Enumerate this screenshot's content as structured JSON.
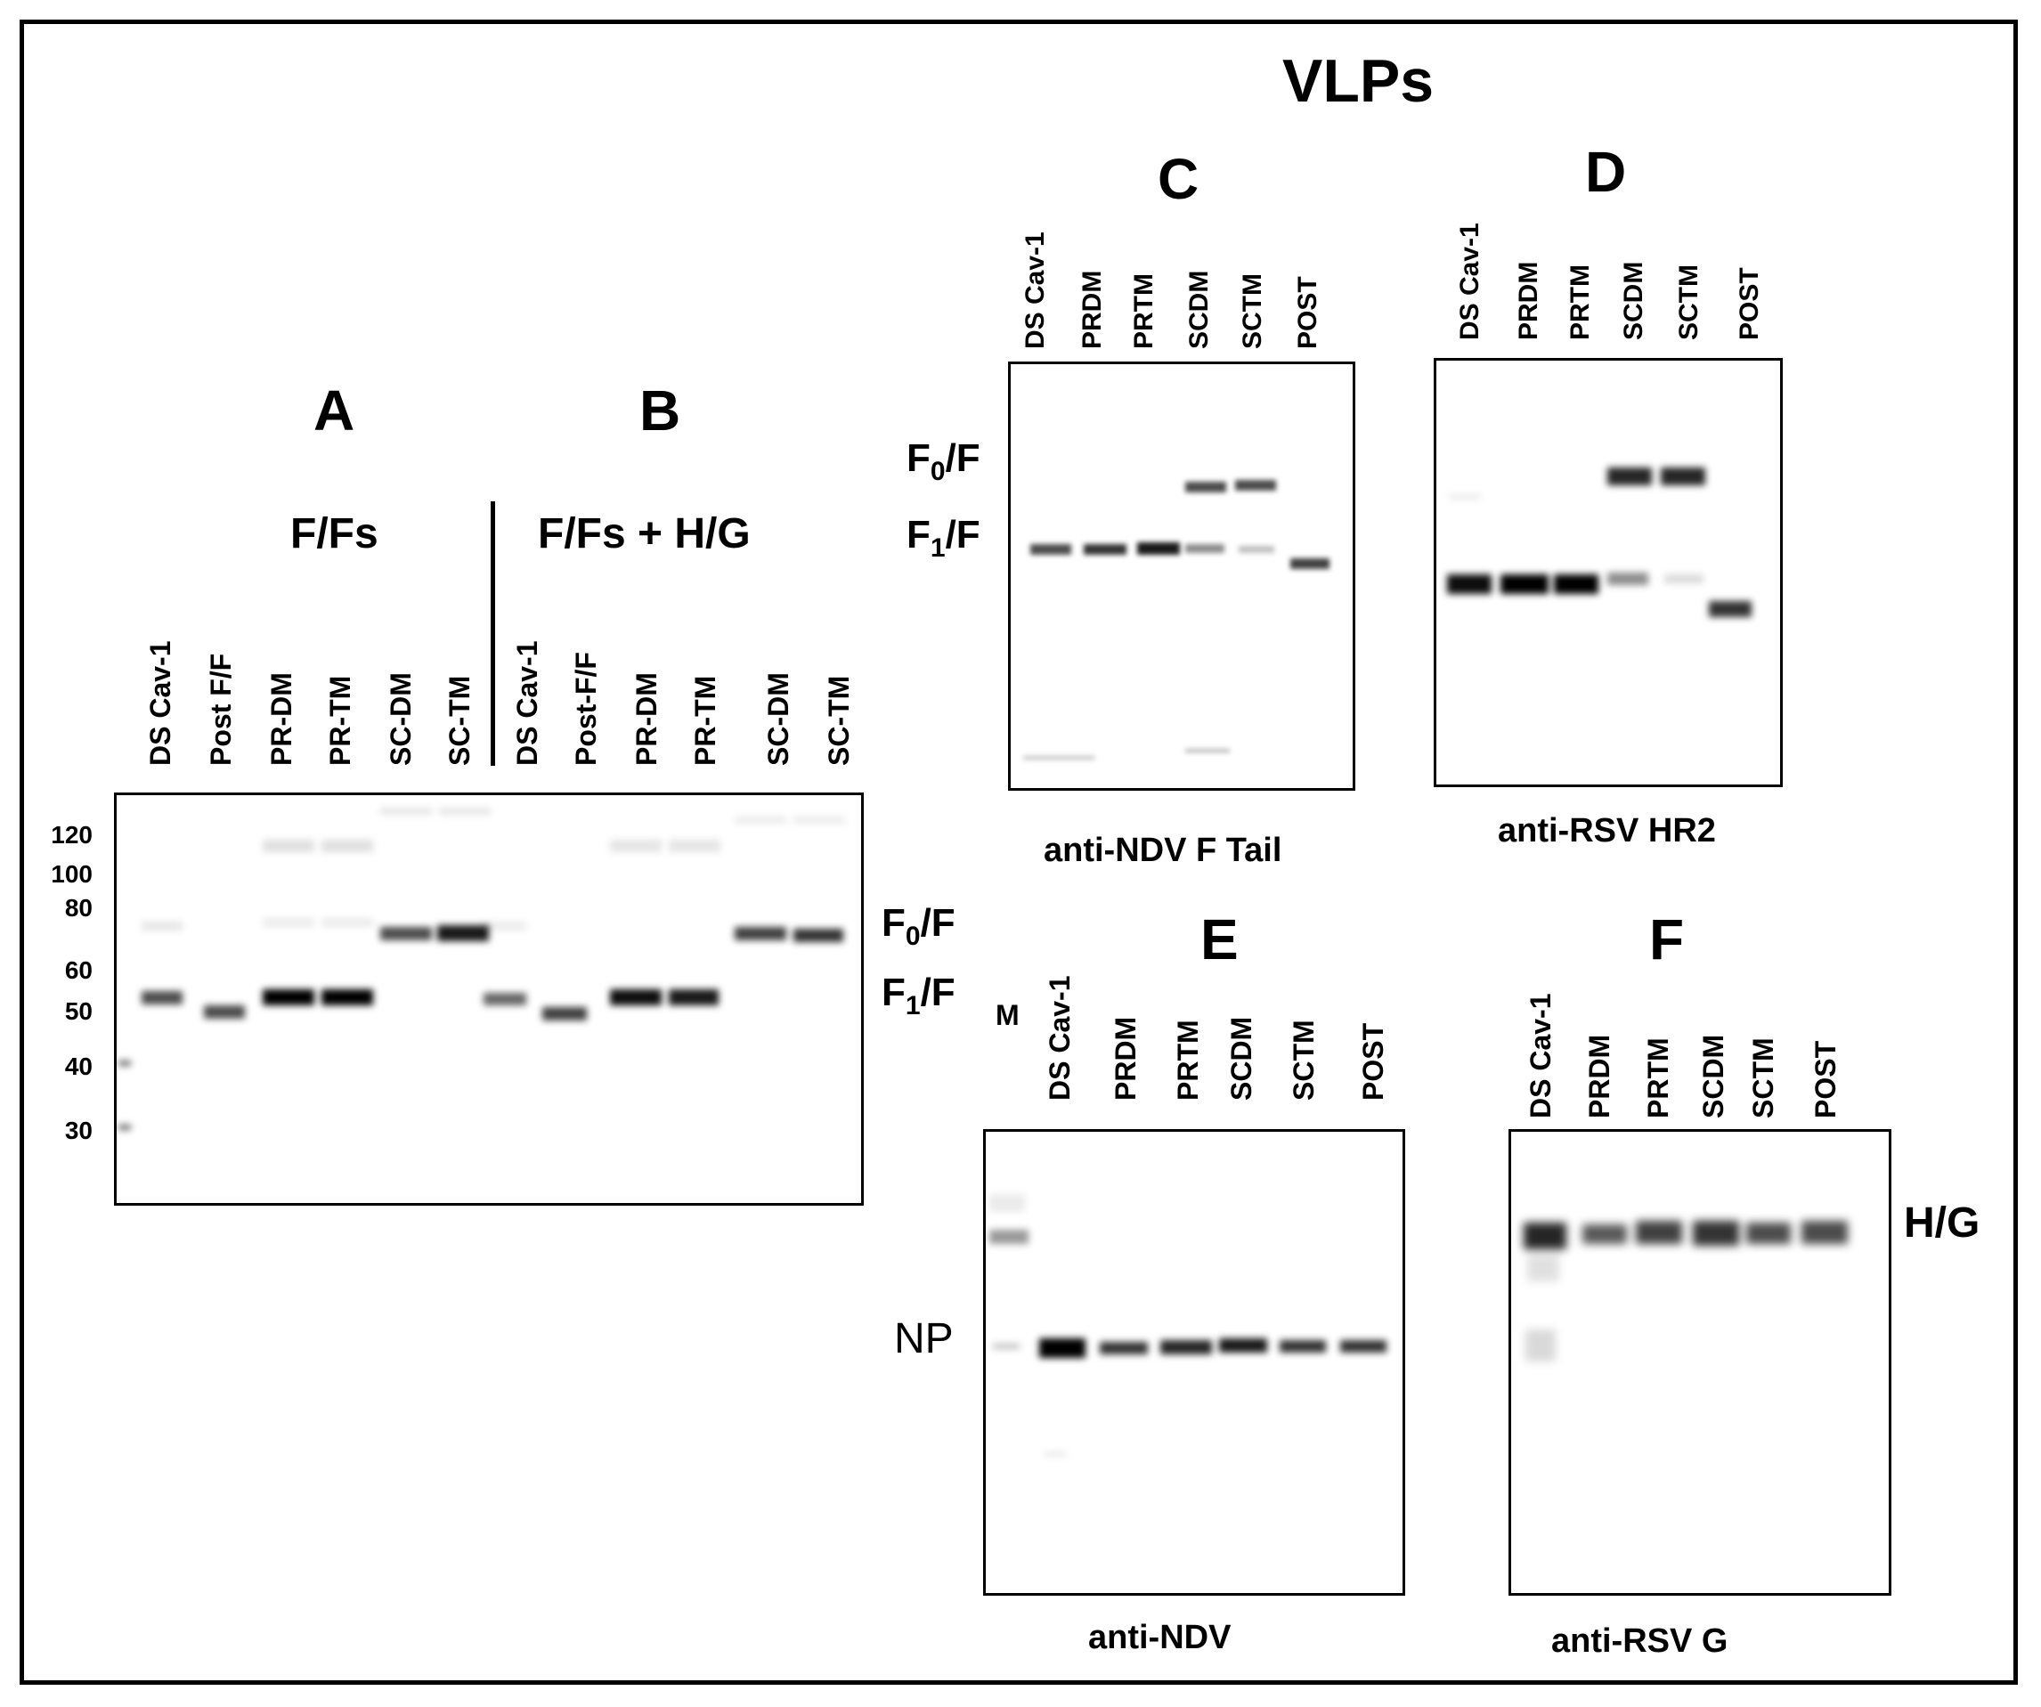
{
  "title": "VLPs",
  "panel_a": {
    "letter": "A",
    "group_label": "F/Fs",
    "lanes": [
      "DS Cav-1",
      "Post F/F",
      "PR-DM",
      "PR-TM",
      "SC-DM",
      "SC-TM"
    ]
  },
  "panel_b": {
    "letter": "B",
    "group_label": "F/Fs + H/G",
    "lanes": [
      "DS Cav-1",
      "Post-F/F",
      "PR-DM",
      "PR-TM",
      "SC-DM",
      "SC-TM"
    ]
  },
  "ab_markers": [
    "120",
    "100",
    "80",
    "60",
    "50",
    "40",
    "30"
  ],
  "ab_right_labels": {
    "f0": "F",
    "f0_sub": "0",
    "f0_tail": "/F",
    "f1": "F",
    "f1_sub": "1",
    "f1_tail": "/F"
  },
  "panel_c": {
    "letter": "C",
    "lanes": [
      "DS Cav-1",
      "PRDM",
      "PRTM",
      "SCDM",
      "SCTM",
      "POST"
    ],
    "caption": "anti-NDV F Tail"
  },
  "cd_left_labels": {
    "f0": "F",
    "f0_sub": "0",
    "f0_tail": "/F",
    "f1": "F",
    "f1_sub": "1",
    "f1_tail": "/F"
  },
  "panel_d": {
    "letter": "D",
    "lanes": [
      "DS Cav-1",
      "PRDM",
      "PRTM",
      "SCDM",
      "SCTM",
      "POST"
    ],
    "caption": "anti-RSV HR2"
  },
  "panel_e": {
    "letter": "E",
    "marker_label": "M",
    "lanes": [
      "DS Cav-1",
      "PRDM",
      "PRTM",
      "SCDM",
      "SCTM",
      "POST"
    ],
    "band_label": "NP",
    "caption": "anti-NDV"
  },
  "panel_f": {
    "letter": "F",
    "lanes": [
      "DS Cav-1",
      "PRDM",
      "PRTM",
      "SCDM",
      "SCTM",
      "POST"
    ],
    "band_label": "H/G",
    "caption": "anti-RSV G"
  },
  "colors": {
    "band": "#000000",
    "background": "#ffffff",
    "frame": "#000000"
  }
}
